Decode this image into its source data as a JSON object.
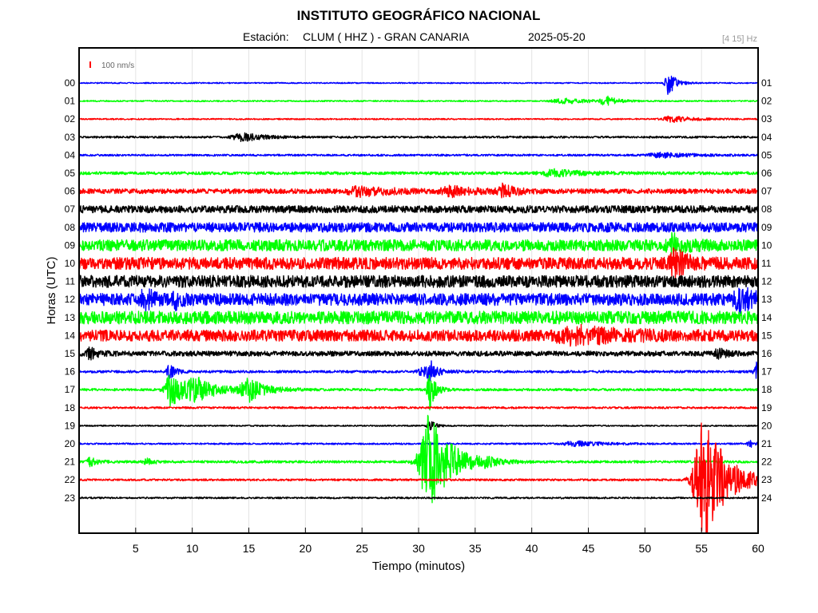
{
  "header": {
    "title": "INSTITUTO GEOGRÁFICO NACIONAL",
    "station_label": "Estación:",
    "station_name": "CLUM ( HHZ ) - GRAN CANARIA",
    "date": "2025-05-20",
    "filter": "[4 15] Hz"
  },
  "scale_bar": {
    "label": "100 nm/s",
    "color": "#ff0000"
  },
  "chart_data": {
    "type": "seismogram",
    "xlabel": "Tiempo (minutos)",
    "ylabel": "Horas (UTC)",
    "xlim": [
      0,
      60
    ],
    "x_ticks": [
      "5",
      "10",
      "15",
      "20",
      "25",
      "30",
      "35",
      "40",
      "45",
      "50",
      "55",
      "60"
    ],
    "left_hour_labels": [
      "00",
      "01",
      "02",
      "03",
      "04",
      "05",
      "06",
      "07",
      "08",
      "09",
      "10",
      "11",
      "12",
      "13",
      "14",
      "15",
      "16",
      "17",
      "18",
      "19",
      "20",
      "21",
      "22",
      "23"
    ],
    "right_hour_labels": [
      "01",
      "02",
      "03",
      "04",
      "05",
      "06",
      "07",
      "08",
      "09",
      "10",
      "11",
      "12",
      "13",
      "14",
      "15",
      "16",
      "17",
      "18",
      "19",
      "20",
      "21",
      "22",
      "23",
      "24"
    ],
    "color_cycle": [
      "#0000ff",
      "#00ff00",
      "#ff0000",
      "#000000"
    ],
    "traces": [
      {
        "hour": "00",
        "color": "#0000ff",
        "noise": 0.7,
        "events": [
          {
            "t": 52.1,
            "amp": 15,
            "dur": 0.5
          }
        ]
      },
      {
        "hour": "01",
        "color": "#00ff00",
        "noise": 0.8,
        "events": [
          {
            "t": 43,
            "amp": 3,
            "dur": 2
          },
          {
            "t": 46.5,
            "amp": 7,
            "dur": 0.6
          }
        ]
      },
      {
        "hour": "02",
        "color": "#ff0000",
        "noise": 0.8,
        "events": [
          {
            "t": 52.5,
            "amp": 4,
            "dur": 1.5
          }
        ]
      },
      {
        "hour": "03",
        "color": "#000000",
        "noise": 1.2,
        "events": [
          {
            "t": 14.5,
            "amp": 5,
            "dur": 1.5
          }
        ]
      },
      {
        "hour": "04",
        "color": "#0000ff",
        "noise": 1.2,
        "events": [
          {
            "t": 51.5,
            "amp": 3,
            "dur": 2
          }
        ]
      },
      {
        "hour": "05",
        "color": "#00ff00",
        "noise": 1.8,
        "events": [
          {
            "t": 42,
            "amp": 4,
            "dur": 2
          }
        ]
      },
      {
        "hour": "06",
        "color": "#ff0000",
        "noise": 3.0,
        "events": [
          {
            "t": 25,
            "amp": 5,
            "dur": 2
          },
          {
            "t": 33,
            "amp": 5,
            "dur": 1.5
          },
          {
            "t": 37.5,
            "amp": 8,
            "dur": 0.8
          }
        ]
      },
      {
        "hour": "07",
        "color": "#000000",
        "noise": 4.5,
        "events": []
      },
      {
        "hour": "08",
        "color": "#0000ff",
        "noise": 6.0,
        "events": []
      },
      {
        "hour": "09",
        "color": "#00ff00",
        "noise": 7.0,
        "events": [
          {
            "t": 52.5,
            "amp": 10,
            "dur": 0.8
          }
        ]
      },
      {
        "hour": "10",
        "color": "#ff0000",
        "noise": 7.5,
        "events": [
          {
            "t": 52.7,
            "amp": 15,
            "dur": 0.8
          }
        ]
      },
      {
        "hour": "11",
        "color": "#000000",
        "noise": 7.5,
        "events": []
      },
      {
        "hour": "12",
        "color": "#0000ff",
        "noise": 7.5,
        "events": [
          {
            "t": 5.8,
            "amp": 14,
            "dur": 0.5
          },
          {
            "t": 8.5,
            "amp": 8,
            "dur": 0.4
          },
          {
            "t": 58.5,
            "amp": 12,
            "dur": 1
          }
        ]
      },
      {
        "hour": "13",
        "color": "#00ff00",
        "noise": 8.0,
        "events": []
      },
      {
        "hour": "14",
        "color": "#ff0000",
        "noise": 7.0,
        "events": [
          {
            "t": 44,
            "amp": 8,
            "dur": 3
          }
        ]
      },
      {
        "hour": "15",
        "color": "#000000",
        "noise": 3.0,
        "events": [
          {
            "t": 1,
            "amp": 6,
            "dur": 0.6
          },
          {
            "t": 56.5,
            "amp": 6,
            "dur": 0.5
          }
        ]
      },
      {
        "hour": "16",
        "color": "#0000ff",
        "noise": 1.5,
        "events": [
          {
            "t": 8,
            "amp": 10,
            "dur": 0.4
          },
          {
            "t": 30.5,
            "amp": 6,
            "dur": 1
          },
          {
            "t": 31,
            "amp": 12,
            "dur": 0.3
          },
          {
            "t": 59.8,
            "amp": 14,
            "dur": 0.3
          }
        ]
      },
      {
        "hour": "17",
        "color": "#00ff00",
        "noise": 1.5,
        "events": [
          {
            "t": 8.2,
            "amp": 22,
            "dur": 1
          },
          {
            "t": 10.5,
            "amp": 12,
            "dur": 1.5
          },
          {
            "t": 15,
            "amp": 14,
            "dur": 1.2
          },
          {
            "t": 31,
            "amp": 25,
            "dur": 0.4
          }
        ]
      },
      {
        "hour": "18",
        "color": "#ff0000",
        "noise": 1.2,
        "events": []
      },
      {
        "hour": "19",
        "color": "#000000",
        "noise": 0.8,
        "events": [
          {
            "t": 31,
            "amp": 8,
            "dur": 0.4
          }
        ]
      },
      {
        "hour": "20",
        "color": "#0000ff",
        "noise": 1.0,
        "events": [
          {
            "t": 44,
            "amp": 3,
            "dur": 2
          },
          {
            "t": 59.3,
            "amp": 4,
            "dur": 0.4
          }
        ]
      },
      {
        "hour": "21",
        "color": "#00ff00",
        "noise": 1.5,
        "events": [
          {
            "t": 1,
            "amp": 5,
            "dur": 0.5
          },
          {
            "t": 6,
            "amp": 4,
            "dur": 0.5
          },
          {
            "t": 31,
            "amp": 60,
            "dur": 1.5
          },
          {
            "t": 36,
            "amp": 4,
            "dur": 0.5
          }
        ]
      },
      {
        "hour": "22",
        "color": "#ff0000",
        "noise": 1.2,
        "events": [
          {
            "t": 55.3,
            "amp": 80,
            "dur": 1.5
          }
        ]
      },
      {
        "hour": "23",
        "color": "#000000",
        "noise": 1.0,
        "events": []
      }
    ]
  }
}
